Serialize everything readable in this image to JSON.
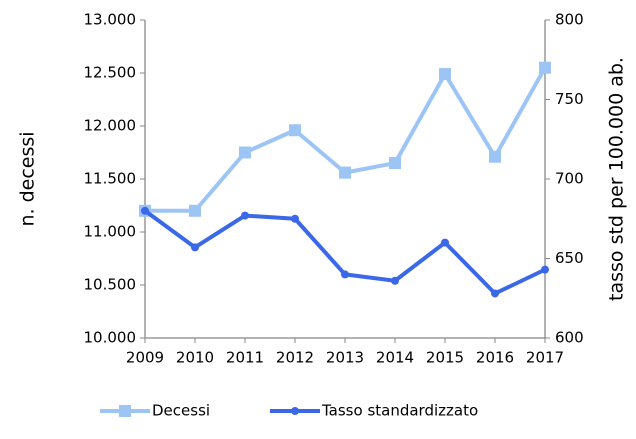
{
  "chart_data": {
    "type": "line",
    "categories": [
      "2009",
      "2010",
      "2011",
      "2012",
      "2013",
      "2014",
      "2015",
      "2016",
      "2017"
    ],
    "ylabel": "n. decessi",
    "y2label": "tasso std per 100.000 ab.",
    "ylim": [
      10000,
      13000
    ],
    "yticks": [
      {
        "value": 10000,
        "label": "10.000"
      },
      {
        "value": 10500,
        "label": "10.500"
      },
      {
        "value": 11000,
        "label": "11.000"
      },
      {
        "value": 11500,
        "label": "11.500"
      },
      {
        "value": 12000,
        "label": "12.000"
      },
      {
        "value": 12500,
        "label": "12.500"
      },
      {
        "value": 13000,
        "label": "13.000"
      }
    ],
    "y2lim": [
      600,
      800
    ],
    "y2ticks": [
      600,
      650,
      700,
      750,
      800
    ],
    "grid": false,
    "legend": "bottom",
    "series": [
      {
        "name": "Decessi",
        "color": "#9cc5f5",
        "marker": "square",
        "values": [
          11200,
          11200,
          11750,
          11960,
          11560,
          11650,
          12490,
          11710,
          12550
        ]
      },
      {
        "name": "Tasso standardizzato",
        "color": "#3a68e8",
        "marker": "circle",
        "axis": "y2",
        "values": [
          680,
          657,
          677,
          675,
          640,
          636,
          660,
          628,
          643
        ]
      }
    ]
  }
}
